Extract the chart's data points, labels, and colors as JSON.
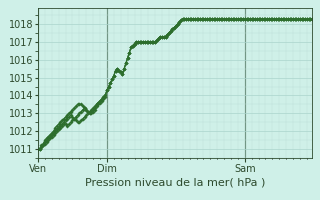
{
  "bg_color": "#cff0e8",
  "grid_color_major": "#aad4cc",
  "grid_color_minor": "#bbddd6",
  "line_color": "#2d6e2d",
  "marker_color": "#2d6e2d",
  "text_color": "#2d4a2d",
  "xlabel": "Pression niveau de la mer( hPa )",
  "xlabel_fontsize": 8,
  "tick_fontsize": 7,
  "xtick_labels": [
    "Ven",
    "Dim",
    "Sam"
  ],
  "xtick_positions": [
    0,
    40,
    120
  ],
  "total_points": 160,
  "ylim": [
    1010.5,
    1018.9
  ],
  "yticks": [
    1011,
    1012,
    1013,
    1014,
    1015,
    1016,
    1017,
    1018
  ],
  "series1": [
    1011.0,
    1011.0,
    1011.1,
    1011.2,
    1011.3,
    1011.4,
    1011.5,
    1011.6,
    1011.7,
    1011.8,
    1011.9,
    1012.0,
    1012.1,
    1012.2,
    1012.3,
    1012.4,
    1012.4,
    1012.3,
    1012.4,
    1012.5,
    1012.6,
    1012.7,
    1012.8,
    1012.9,
    1013.0,
    1013.1,
    1013.2,
    1013.3,
    1013.2,
    1013.1,
    1013.0,
    1013.1,
    1013.2,
    1013.3,
    1013.5,
    1013.6,
    1013.7,
    1013.8,
    1013.9,
    1014.0,
    1014.3,
    1014.5,
    1014.7,
    1014.9,
    1015.1,
    1015.4,
    1015.5,
    1015.4,
    1015.3,
    1015.2,
    1015.5,
    1015.8,
    1016.1,
    1016.4,
    1016.7,
    1016.8,
    1016.9,
    1017.0,
    1017.0,
    1017.0,
    1017.0,
    1017.0,
    1017.0,
    1017.0,
    1017.0,
    1017.0,
    1017.0,
    1017.0,
    1017.0,
    1017.1,
    1017.2,
    1017.3,
    1017.3,
    1017.3,
    1017.3,
    1017.4,
    1017.5,
    1017.6,
    1017.7,
    1017.8,
    1017.9,
    1018.0,
    1018.1,
    1018.2,
    1018.3,
    1018.3,
    1018.3,
    1018.3,
    1018.3,
    1018.3,
    1018.3,
    1018.3,
    1018.3,
    1018.3,
    1018.3,
    1018.3,
    1018.3,
    1018.3,
    1018.3,
    1018.3,
    1018.3,
    1018.3,
    1018.3,
    1018.3,
    1018.3,
    1018.3,
    1018.3,
    1018.3,
    1018.3,
    1018.3,
    1018.3,
    1018.3,
    1018.3,
    1018.3,
    1018.3,
    1018.3,
    1018.3,
    1018.3,
    1018.3,
    1018.3,
    1018.3,
    1018.3,
    1018.3,
    1018.3,
    1018.3,
    1018.3,
    1018.3,
    1018.3,
    1018.3,
    1018.3,
    1018.3,
    1018.3,
    1018.3,
    1018.3,
    1018.3,
    1018.3,
    1018.3,
    1018.3,
    1018.3,
    1018.3,
    1018.3,
    1018.3,
    1018.3,
    1018.3,
    1018.3,
    1018.3,
    1018.3,
    1018.3,
    1018.3,
    1018.3,
    1018.3,
    1018.3,
    1018.3,
    1018.3,
    1018.3,
    1018.3,
    1018.3,
    1018.3,
    1018.3,
    1018.3
  ],
  "series2": [
    1011.0,
    1011.0,
    1011.1,
    1011.2,
    1011.4,
    1011.5,
    1011.6,
    1011.7,
    1011.8,
    1011.9,
    1012.0,
    1012.1,
    1012.2,
    1012.3,
    1012.4,
    1012.5,
    1012.6,
    1012.7,
    1012.8,
    1012.9,
    1012.8,
    1012.7,
    1012.6,
    1012.5,
    1012.5,
    1012.6,
    1012.7,
    1012.8,
    1012.9,
    1013.0,
    1013.1,
    1013.2,
    1013.3,
    1013.4,
    1013.5,
    1013.6,
    1013.7,
    1013.8,
    1013.9,
    1014.0,
    1014.3,
    1014.5,
    1014.7,
    1014.9,
    1015.1,
    1015.4,
    1015.5,
    1015.4,
    1015.3,
    1015.2,
    1015.5,
    1015.8,
    1016.1,
    1016.4,
    1016.7,
    1016.8,
    1016.9,
    1017.0,
    1017.0,
    1017.0,
    1017.0,
    1017.0,
    1017.0,
    1017.0,
    1017.0,
    1017.0,
    1017.0,
    1017.0,
    1017.0,
    1017.1,
    1017.2,
    1017.3,
    1017.3,
    1017.3,
    1017.3,
    1017.4,
    1017.5,
    1017.6,
    1017.7,
    1017.8,
    1017.9,
    1018.0,
    1018.1,
    1018.2,
    1018.3,
    1018.3,
    1018.3,
    1018.3,
    1018.3,
    1018.3,
    1018.3,
    1018.3,
    1018.3,
    1018.3,
    1018.3,
    1018.3,
    1018.3,
    1018.3,
    1018.3,
    1018.3,
    1018.3,
    1018.3,
    1018.3,
    1018.3,
    1018.3,
    1018.3,
    1018.3,
    1018.3,
    1018.3,
    1018.3,
    1018.3,
    1018.3,
    1018.3,
    1018.3,
    1018.3,
    1018.3,
    1018.3,
    1018.3,
    1018.3,
    1018.3,
    1018.3,
    1018.3,
    1018.3,
    1018.3,
    1018.3,
    1018.3,
    1018.3,
    1018.3,
    1018.3,
    1018.3,
    1018.3,
    1018.3,
    1018.3,
    1018.3,
    1018.3,
    1018.3,
    1018.3,
    1018.3,
    1018.3,
    1018.3,
    1018.3,
    1018.3,
    1018.3,
    1018.3,
    1018.3,
    1018.3,
    1018.3,
    1018.3,
    1018.3,
    1018.3,
    1018.3,
    1018.3,
    1018.3,
    1018.3,
    1018.3,
    1018.3,
    1018.3,
    1018.3,
    1018.3,
    1018.3
  ],
  "series3": [
    1011.0,
    1011.0,
    1011.2,
    1011.3,
    1011.5,
    1011.6,
    1011.7,
    1011.8,
    1011.9,
    1012.0,
    1012.2,
    1012.3,
    1012.4,
    1012.5,
    1012.6,
    1012.7,
    1012.8,
    1012.9,
    1013.0,
    1013.1,
    1013.2,
    1013.3,
    1013.4,
    1013.5,
    1013.5,
    1013.5,
    1013.4,
    1013.3,
    1013.2,
    1013.1,
    1013.0,
    1013.0,
    1013.1,
    1013.2,
    1013.4,
    1013.5,
    1013.6,
    1013.7,
    1013.8,
    1013.9,
    1014.3,
    1014.5,
    1014.7,
    1014.9,
    1015.1,
    1015.4,
    1015.5,
    1015.4,
    1015.3,
    1015.2,
    1015.5,
    1015.8,
    1016.1,
    1016.4,
    1016.7,
    1016.8,
    1016.9,
    1017.0,
    1017.0,
    1017.0,
    1017.0,
    1017.0,
    1017.0,
    1017.0,
    1017.0,
    1017.0,
    1017.0,
    1017.0,
    1017.0,
    1017.1,
    1017.2,
    1017.3,
    1017.3,
    1017.3,
    1017.3,
    1017.4,
    1017.5,
    1017.6,
    1017.7,
    1017.8,
    1017.9,
    1018.0,
    1018.1,
    1018.2,
    1018.3,
    1018.3,
    1018.3,
    1018.3,
    1018.3,
    1018.3,
    1018.3,
    1018.3,
    1018.3,
    1018.3,
    1018.3,
    1018.3,
    1018.3,
    1018.3,
    1018.3,
    1018.3,
    1018.3,
    1018.3,
    1018.3,
    1018.3,
    1018.3,
    1018.3,
    1018.3,
    1018.3,
    1018.3,
    1018.3,
    1018.3,
    1018.3,
    1018.3,
    1018.3,
    1018.3,
    1018.3,
    1018.3,
    1018.3,
    1018.3,
    1018.3,
    1018.3,
    1018.3,
    1018.3,
    1018.3,
    1018.3,
    1018.3,
    1018.3,
    1018.3,
    1018.3,
    1018.3,
    1018.3,
    1018.3,
    1018.3,
    1018.3,
    1018.3,
    1018.3,
    1018.3,
    1018.3,
    1018.3,
    1018.3,
    1018.3,
    1018.3,
    1018.3,
    1018.3,
    1018.3,
    1018.3,
    1018.3,
    1018.3,
    1018.3,
    1018.3,
    1018.3,
    1018.3,
    1018.3,
    1018.3,
    1018.3,
    1018.3,
    1018.3,
    1018.3,
    1018.3,
    1018.3
  ]
}
